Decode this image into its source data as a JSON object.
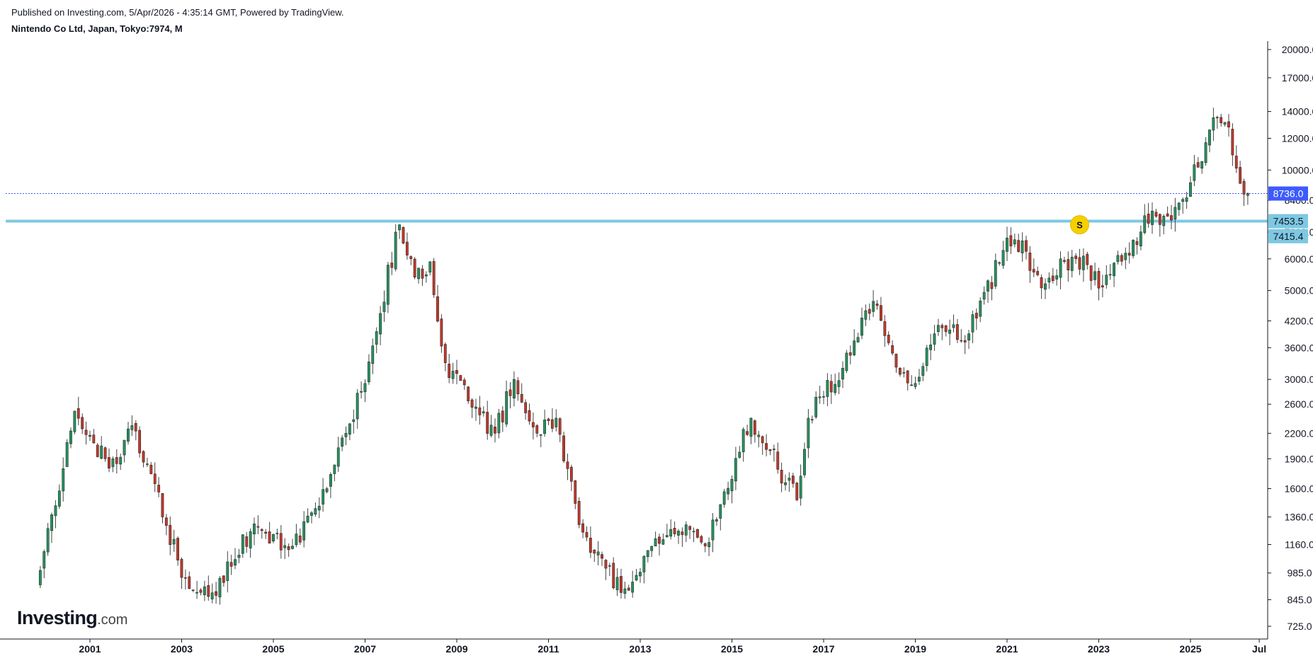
{
  "header": {
    "published": "Published on Investing.com, 5/Apr/2026 - 4:35:14 GMT, Powered by TradingView.",
    "symbol": "Nintendo Co Ltd, Japan, Tokyo:7974, M"
  },
  "logo": {
    "brand": "Investing",
    "suffix": ".com"
  },
  "colors": {
    "up": "#26915f",
    "down": "#c0392b",
    "candle_border": "#1a1a1a",
    "wick": "#444444",
    "support_line": "#7ec8e3",
    "last_price_line": "#3d5afe",
    "last_price_badge": "#3d5afe",
    "level_badge": "#7ec8e3",
    "marker": "#f5d000"
  },
  "chart_data": {
    "type": "candlestick",
    "title": "Nintendo Co Ltd, Japan, Tokyo:7974, M",
    "interval": "monthly",
    "scale": "log",
    "grid": false,
    "y_ticks": [
      20000.0,
      17000.0,
      14000.0,
      12000.0,
      10000.0,
      8400.0,
      7000.0,
      6000.0,
      5000.0,
      4200.0,
      3600.0,
      3000.0,
      2600.0,
      2200.0,
      1900.0,
      1600.0,
      1360.0,
      1160.0,
      985.0,
      845.0,
      725.0
    ],
    "y_tick_labels": [
      "20000.0",
      "17000.0",
      "14000.0",
      "12000.0",
      "10000.0",
      "8400.0",
      "7000.0",
      "6000.0",
      "5000.0",
      "4200.0",
      "3600.0",
      "3000.0",
      "2600.0",
      "2200.0",
      "1900.0",
      "1600.0",
      "1360.0",
      "1160.0",
      "985.0",
      "845.0",
      "725.0"
    ],
    "x_ticks": [
      "2001",
      "2003",
      "2005",
      "2007",
      "2009",
      "2011",
      "2013",
      "2015",
      "2017",
      "2019",
      "2021",
      "2023",
      "2025",
      "Jul"
    ],
    "x_range": [
      "1999-11",
      "2026-08"
    ],
    "last_price": {
      "value": 8736.0,
      "label": "8736.0"
    },
    "levels": [
      {
        "value": 7453.5,
        "label": "7453.5"
      },
      {
        "value": 7415.4,
        "label": "7415.4"
      }
    ],
    "marker": {
      "label": "S",
      "date": "2022-08",
      "value": 7300
    },
    "key_points": [
      {
        "date": "1999-12",
        "close": 1000
      },
      {
        "date": "2000-09",
        "close": 2500
      },
      {
        "date": "2001-06",
        "close": 1800
      },
      {
        "date": "2001-12",
        "close": 2300
      },
      {
        "date": "2003-03",
        "close": 900
      },
      {
        "date": "2003-08",
        "close": 860
      },
      {
        "date": "2004-07",
        "close": 1250
      },
      {
        "date": "2005-06",
        "close": 1150
      },
      {
        "date": "2006-03",
        "close": 1600
      },
      {
        "date": "2006-12",
        "close": 2800
      },
      {
        "date": "2007-10",
        "close": 7300
      },
      {
        "date": "2008-02",
        "close": 5400
      },
      {
        "date": "2008-06",
        "close": 5900
      },
      {
        "date": "2008-10",
        "close": 3300
      },
      {
        "date": "2009-04",
        "close": 2650
      },
      {
        "date": "2009-11",
        "close": 2200
      },
      {
        "date": "2010-04",
        "close": 3000
      },
      {
        "date": "2010-10",
        "close": 2200
      },
      {
        "date": "2011-03",
        "close": 2400
      },
      {
        "date": "2011-09",
        "close": 1300
      },
      {
        "date": "2012-08",
        "close": 880
      },
      {
        "date": "2013-05",
        "close": 1200
      },
      {
        "date": "2014-01",
        "close": 1300
      },
      {
        "date": "2014-06",
        "close": 1150
      },
      {
        "date": "2015-06",
        "close": 2400
      },
      {
        "date": "2016-06",
        "close": 1500
      },
      {
        "date": "2016-09",
        "close": 2400
      },
      {
        "date": "2017-06",
        "close": 3200
      },
      {
        "date": "2018-02",
        "close": 4700
      },
      {
        "date": "2018-06",
        "close": 3700
      },
      {
        "date": "2018-12",
        "close": 2900
      },
      {
        "date": "2019-06",
        "close": 3900
      },
      {
        "date": "2020-03",
        "close": 3900
      },
      {
        "date": "2020-12",
        "close": 6300
      },
      {
        "date": "2021-03",
        "close": 6700
      },
      {
        "date": "2021-11",
        "close": 5200
      },
      {
        "date": "2022-03",
        "close": 6000
      },
      {
        "date": "2022-10",
        "close": 5800
      },
      {
        "date": "2023-02",
        "close": 5100
      },
      {
        "date": "2023-08",
        "close": 6200
      },
      {
        "date": "2024-03",
        "close": 7900
      },
      {
        "date": "2024-08",
        "close": 7500
      },
      {
        "date": "2025-01",
        "close": 9300
      },
      {
        "date": "2025-08",
        "close": 13500
      },
      {
        "date": "2025-11",
        "close": 12800
      },
      {
        "date": "2026-01",
        "close": 10100
      },
      {
        "date": "2026-03",
        "close": 8700
      },
      {
        "date": "2026-04",
        "close": 8736
      }
    ]
  }
}
